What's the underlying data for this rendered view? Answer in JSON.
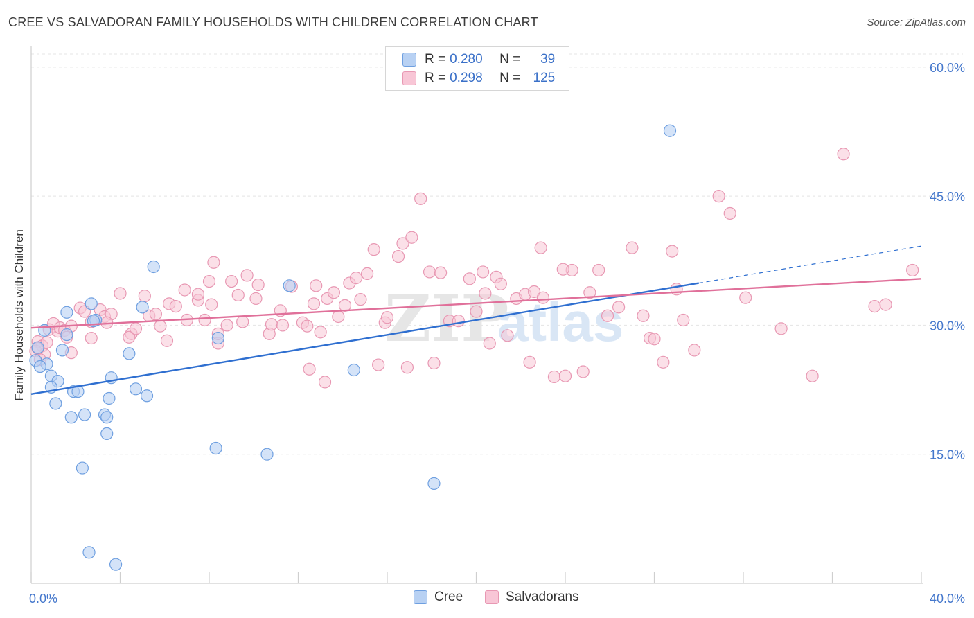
{
  "chart_data": {
    "type": "scatter",
    "title": "CREE VS SALVADORAN FAMILY HOUSEHOLDS WITH CHILDREN CORRELATION CHART",
    "source": "Source: ZipAtlas.com",
    "ylabel": "Family Households with Children",
    "xlim": [
      0,
      40
    ],
    "ylim": [
      0,
      62
    ],
    "x_tick_labels": [
      "0.0%",
      "40.0%"
    ],
    "y_ticks": [
      15,
      30,
      45,
      60
    ],
    "y_tick_labels": [
      "15.0%",
      "30.0%",
      "45.0%",
      "60.0%"
    ],
    "grid": true,
    "legend_position": "top-center",
    "watermark": "ZIPatlas",
    "colors": {
      "cree_fill": "#b8d1f3",
      "cree_stroke": "#6e9fe0",
      "cree_line": "#2f6fd0",
      "salv_fill": "#f8c6d6",
      "salv_stroke": "#e898b3",
      "salv_line": "#e0709a",
      "tick_label": "#4477cc"
    },
    "legend": [
      {
        "r_label": "R =",
        "r_value": "0.280",
        "n_label": "N =",
        "n_value": "39"
      },
      {
        "r_label": "R =",
        "r_value": "0.298",
        "n_label": "N =",
        "n_value": "125"
      }
    ],
    "series": [
      {
        "name": "Cree",
        "trend": {
          "x0": 0,
          "y0": 22.0,
          "x1": 30,
          "y1": 34.9,
          "dash_x1": 40,
          "dash_y1": 39.2
        },
        "points": [
          [
            0.3,
            27.4
          ],
          [
            0.6,
            29.4
          ],
          [
            0.2,
            25.9
          ],
          [
            0.7,
            25.5
          ],
          [
            0.4,
            25.2
          ],
          [
            0.9,
            24.1
          ],
          [
            1.2,
            23.5
          ],
          [
            0.9,
            22.8
          ],
          [
            1.9,
            22.3
          ],
          [
            2.1,
            22.3
          ],
          [
            1.1,
            20.9
          ],
          [
            1.8,
            19.3
          ],
          [
            2.4,
            19.6
          ],
          [
            3.3,
            19.6
          ],
          [
            3.4,
            19.3
          ],
          [
            2.7,
            32.5
          ],
          [
            1.6,
            31.5
          ],
          [
            2.9,
            30.6
          ],
          [
            2.8,
            30.5
          ],
          [
            1.6,
            28.9
          ],
          [
            1.4,
            27.1
          ],
          [
            4.4,
            26.7
          ],
          [
            3.6,
            23.9
          ],
          [
            4.7,
            22.6
          ],
          [
            5.2,
            21.8
          ],
          [
            3.5,
            21.5
          ],
          [
            5.0,
            32.1
          ],
          [
            5.5,
            36.8
          ],
          [
            3.4,
            17.4
          ],
          [
            2.3,
            13.4
          ],
          [
            8.3,
            15.7
          ],
          [
            10.6,
            15.0
          ],
          [
            11.6,
            34.6
          ],
          [
            8.4,
            28.5
          ],
          [
            14.5,
            24.8
          ],
          [
            18.1,
            11.6
          ],
          [
            2.6,
            3.6
          ],
          [
            3.8,
            2.2
          ],
          [
            28.7,
            52.6
          ]
        ]
      },
      {
        "name": "Salvadorans",
        "trend": {
          "x0": 0,
          "y0": 29.7,
          "x1": 40,
          "y1": 35.4
        },
        "points": [
          [
            0.3,
            28.1
          ],
          [
            0.5,
            27.6
          ],
          [
            0.2,
            27.0
          ],
          [
            0.6,
            26.6
          ],
          [
            0.4,
            26.0
          ],
          [
            0.3,
            27.3
          ],
          [
            0.8,
            29.5
          ],
          [
            1.0,
            30.2
          ],
          [
            1.2,
            29.3
          ],
          [
            1.3,
            29.7
          ],
          [
            1.5,
            29.4
          ],
          [
            1.6,
            28.6
          ],
          [
            1.8,
            29.9
          ],
          [
            0.7,
            28.0
          ],
          [
            1.8,
            26.8
          ],
          [
            2.2,
            32.0
          ],
          [
            2.4,
            31.6
          ],
          [
            2.7,
            30.4
          ],
          [
            3.1,
            31.8
          ],
          [
            3.3,
            31.0
          ],
          [
            3.6,
            31.3
          ],
          [
            2.7,
            28.5
          ],
          [
            3.4,
            30.3
          ],
          [
            4.0,
            33.7
          ],
          [
            4.5,
            29.0
          ],
          [
            4.4,
            28.6
          ],
          [
            4.7,
            29.6
          ],
          [
            5.1,
            33.4
          ],
          [
            5.3,
            31.1
          ],
          [
            5.6,
            31.3
          ],
          [
            5.8,
            29.9
          ],
          [
            6.1,
            28.2
          ],
          [
            6.2,
            32.5
          ],
          [
            6.5,
            32.2
          ],
          [
            6.9,
            34.1
          ],
          [
            7.0,
            30.6
          ],
          [
            7.5,
            32.9
          ],
          [
            7.5,
            33.6
          ],
          [
            7.8,
            30.6
          ],
          [
            8.0,
            35.1
          ],
          [
            8.1,
            32.4
          ],
          [
            8.4,
            27.9
          ],
          [
            8.4,
            29.0
          ],
          [
            8.8,
            30.0
          ],
          [
            9.0,
            35.1
          ],
          [
            9.3,
            33.5
          ],
          [
            9.5,
            30.4
          ],
          [
            9.7,
            35.8
          ],
          [
            10.1,
            33.1
          ],
          [
            10.2,
            34.7
          ],
          [
            10.7,
            29.0
          ],
          [
            10.8,
            30.1
          ],
          [
            11.2,
            31.7
          ],
          [
            11.3,
            30.0
          ],
          [
            11.7,
            34.5
          ],
          [
            12.2,
            30.3
          ],
          [
            12.4,
            29.9
          ],
          [
            12.7,
            32.5
          ],
          [
            12.8,
            34.6
          ],
          [
            13.0,
            29.2
          ],
          [
            13.3,
            33.1
          ],
          [
            13.6,
            33.8
          ],
          [
            13.8,
            31.0
          ],
          [
            14.1,
            32.3
          ],
          [
            14.3,
            34.9
          ],
          [
            14.6,
            35.5
          ],
          [
            14.8,
            33.0
          ],
          [
            15.1,
            36.0
          ],
          [
            15.4,
            38.8
          ],
          [
            15.9,
            30.3
          ],
          [
            16.0,
            30.9
          ],
          [
            16.5,
            38.0
          ],
          [
            16.7,
            39.5
          ],
          [
            17.1,
            40.2
          ],
          [
            17.5,
            44.7
          ],
          [
            17.9,
            36.2
          ],
          [
            18.4,
            36.1
          ],
          [
            18.8,
            30.5
          ],
          [
            19.2,
            30.5
          ],
          [
            19.7,
            35.4
          ],
          [
            20.0,
            31.6
          ],
          [
            20.3,
            36.2
          ],
          [
            20.4,
            33.7
          ],
          [
            20.6,
            27.9
          ],
          [
            20.9,
            35.6
          ],
          [
            21.1,
            34.8
          ],
          [
            21.4,
            28.8
          ],
          [
            21.8,
            33.1
          ],
          [
            22.2,
            33.6
          ],
          [
            22.6,
            33.9
          ],
          [
            23.0,
            33.2
          ],
          [
            22.9,
            39.0
          ],
          [
            23.5,
            24.0
          ],
          [
            24.0,
            24.1
          ],
          [
            24.3,
            36.4
          ],
          [
            24.8,
            24.6
          ],
          [
            25.1,
            33.8
          ],
          [
            25.5,
            36.4
          ],
          [
            25.9,
            31.1
          ],
          [
            26.4,
            32.1
          ],
          [
            27.0,
            39.0
          ],
          [
            27.5,
            31.1
          ],
          [
            27.8,
            28.5
          ],
          [
            28.0,
            28.4
          ],
          [
            28.4,
            25.7
          ],
          [
            28.8,
            38.6
          ],
          [
            29.0,
            34.2
          ],
          [
            29.3,
            30.6
          ],
          [
            29.8,
            27.1
          ],
          [
            30.9,
            45.0
          ],
          [
            31.4,
            43.0
          ],
          [
            32.1,
            33.2
          ],
          [
            33.7,
            29.6
          ],
          [
            35.1,
            24.1
          ],
          [
            36.5,
            49.9
          ],
          [
            37.9,
            32.2
          ],
          [
            38.4,
            32.4
          ],
          [
            39.6,
            36.4
          ],
          [
            8.2,
            37.3
          ],
          [
            12.5,
            24.9
          ],
          [
            13.2,
            23.4
          ],
          [
            15.6,
            25.4
          ],
          [
            16.9,
            25.1
          ],
          [
            18.1,
            25.6
          ],
          [
            22.4,
            25.7
          ],
          [
            23.9,
            36.5
          ]
        ]
      }
    ]
  },
  "bottom_legend": [
    "Cree",
    "Salvadorans"
  ]
}
